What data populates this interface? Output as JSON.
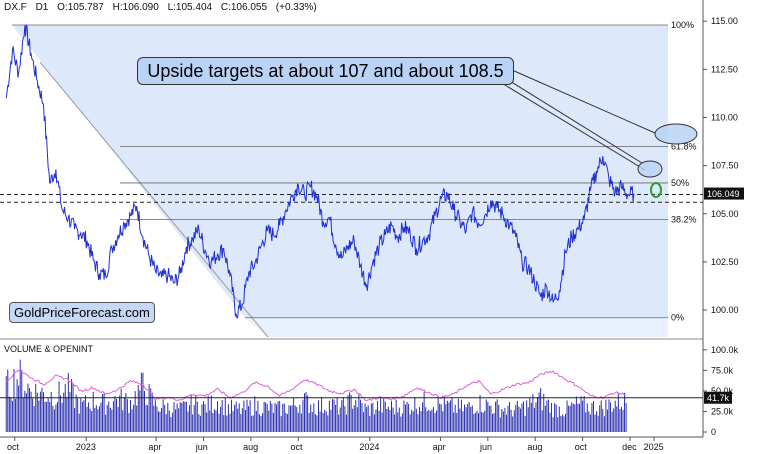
{
  "header": {
    "symbol": "DX.F",
    "interval": "D1",
    "open": "O:105.787",
    "high": "H:106.090",
    "low": "L:105.404",
    "close": "C:106.055",
    "change": "(+0.33%)"
  },
  "annotation": {
    "text": "Upside targets at about 107 and about 108.5"
  },
  "watermark": {
    "text": "GoldPriceForecast.com"
  },
  "volume_panel": {
    "title": "VOLUME & OPENINT"
  },
  "colors": {
    "price_line": "#1f2fd0",
    "fib_fill": "#dde9fb",
    "open_interest": "#e060d8",
    "volume_bars": "#2a2fb0",
    "callout_fill": "#b9d2f5",
    "target_ellipse": "#2ca02c"
  },
  "chart_data": {
    "type": "line",
    "title": "",
    "price_axis": {
      "ticks": [
        "115.00",
        "112.50",
        "110.00",
        "107.50",
        "105.00",
        "102.50",
        "100.00"
      ],
      "tick_values": [
        115,
        112.5,
        110,
        107.5,
        105,
        102.5,
        100
      ],
      "ylim": [
        98.6,
        116.1
      ]
    },
    "time_axis": {
      "ticks": [
        "oct",
        "2023",
        "apr",
        "jun",
        "aug",
        "oct",
        "2024",
        "apr",
        "jun",
        "aug",
        "oct",
        "dec",
        "2025"
      ],
      "tick_dates": [
        "2022-10-01",
        "2023-01-01",
        "2023-04-01",
        "2023-06-01",
        "2023-08-01",
        "2023-10-01",
        "2024-01-01",
        "2024-04-01",
        "2024-06-01",
        "2024-08-01",
        "2024-10-01",
        "2024-12-01",
        "2025-01-01"
      ],
      "xlim": [
        "2022-09-12",
        "2025-03-05"
      ]
    },
    "last_price_label": "106.049",
    "fibonacci_levels": [
      {
        "label": "100%",
        "value": 114.8
      },
      {
        "label": "61.8%",
        "value": 108.5
      },
      {
        "label": "50%",
        "value": 106.6
      },
      {
        "label": "38.2%",
        "value": 104.7
      },
      {
        "label": "0%",
        "value": 99.6
      }
    ],
    "price_series": {
      "name": "",
      "x": [
        "2022-09-20",
        "2022-09-28",
        "2022-10-06",
        "2022-10-14",
        "2022-10-22",
        "2022-10-30",
        "2022-11-07",
        "2022-11-15",
        "2022-11-23",
        "2022-12-01",
        "2022-12-09",
        "2022-12-17",
        "2022-12-25",
        "2023-01-02",
        "2023-01-10",
        "2023-01-18",
        "2023-01-26",
        "2023-02-03",
        "2023-02-11",
        "2023-02-19",
        "2023-02-27",
        "2023-03-07",
        "2023-03-15",
        "2023-03-23",
        "2023-03-31",
        "2023-04-08",
        "2023-04-16",
        "2023-04-24",
        "2023-05-02",
        "2023-05-10",
        "2023-05-18",
        "2023-05-26",
        "2023-06-03",
        "2023-06-11",
        "2023-06-19",
        "2023-06-27",
        "2023-07-05",
        "2023-07-13",
        "2023-07-21",
        "2023-07-29",
        "2023-08-06",
        "2023-08-14",
        "2023-08-22",
        "2023-08-30",
        "2023-09-07",
        "2023-09-15",
        "2023-09-23",
        "2023-10-01",
        "2023-10-09",
        "2023-10-17",
        "2023-10-25",
        "2023-11-02",
        "2023-11-10",
        "2023-11-18",
        "2023-11-26",
        "2023-12-04",
        "2023-12-12",
        "2023-12-20",
        "2023-12-28",
        "2024-01-05",
        "2024-01-13",
        "2024-01-21",
        "2024-01-29",
        "2024-02-06",
        "2024-02-14",
        "2024-02-22",
        "2024-03-01",
        "2024-03-09",
        "2024-03-17",
        "2024-03-25",
        "2024-04-02",
        "2024-04-10",
        "2024-04-18",
        "2024-04-26",
        "2024-05-04",
        "2024-05-12",
        "2024-05-20",
        "2024-05-28",
        "2024-06-05",
        "2024-06-13",
        "2024-06-21",
        "2024-06-29",
        "2024-07-07",
        "2024-07-15",
        "2024-07-23",
        "2024-07-31",
        "2024-08-08",
        "2024-08-16",
        "2024-08-24",
        "2024-09-01",
        "2024-09-09",
        "2024-09-17",
        "2024-09-25",
        "2024-10-03",
        "2024-10-11",
        "2024-10-19",
        "2024-10-27",
        "2024-11-04",
        "2024-11-12",
        "2024-11-20",
        "2024-11-28",
        "2024-12-06"
      ],
      "y": [
        111.0,
        113.5,
        112.3,
        114.8,
        113.3,
        111.9,
        110.7,
        106.6,
        107.3,
        105.2,
        104.8,
        104.2,
        104.0,
        103.6,
        102.6,
        101.9,
        101.8,
        103.2,
        103.9,
        104.5,
        104.9,
        105.4,
        103.8,
        102.8,
        102.0,
        101.7,
        101.8,
        101.4,
        101.9,
        103.3,
        103.7,
        104.2,
        103.1,
        102.5,
        102.9,
        103.2,
        101.8,
        99.8,
        100.3,
        101.9,
        102.4,
        103.3,
        104.1,
        103.9,
        104.4,
        105.2,
        105.9,
        106.5,
        106.0,
        106.4,
        105.9,
        104.6,
        104.8,
        103.4,
        102.7,
        103.3,
        103.6,
        102.3,
        101.3,
        102.5,
        103.3,
        103.9,
        104.4,
        103.8,
        104.3,
        104.0,
        103.2,
        103.6,
        103.9,
        104.9,
        105.8,
        106.0,
        105.2,
        104.6,
        104.1,
        105.1,
        104.5,
        104.9,
        105.7,
        105.3,
        104.9,
        104.4,
        103.8,
        102.5,
        102.2,
        101.5,
        100.7,
        101.2,
        100.4,
        101.0,
        103.0,
        103.8,
        104.2,
        104.7,
        106.2,
        107.2,
        108.0,
        106.8,
        106.1,
        106.4,
        106.0,
        106.05
      ]
    },
    "volume_axis": {
      "ticks": [
        "100.0k",
        "75.0k",
        "50.0k",
        "25.0k",
        "0"
      ],
      "tick_values": [
        100000,
        75000,
        50000,
        25000,
        0
      ],
      "ylim": [
        0,
        112000
      ],
      "last_volume_label": "41.7k"
    },
    "volume_series": {
      "x": [
        "2022-09-20",
        "2022-10-06",
        "2022-10-22",
        "2022-11-07",
        "2022-11-23",
        "2022-12-09",
        "2022-12-25",
        "2023-01-10",
        "2023-01-26",
        "2023-02-11",
        "2023-02-27",
        "2023-03-15",
        "2023-03-31",
        "2023-04-16",
        "2023-05-02",
        "2023-05-18",
        "2023-06-03",
        "2023-06-19",
        "2023-07-05",
        "2023-07-21",
        "2023-08-06",
        "2023-08-22",
        "2023-09-07",
        "2023-09-23",
        "2023-10-09",
        "2023-10-25",
        "2023-11-10",
        "2023-11-26",
        "2023-12-12",
        "2023-12-28",
        "2024-01-13",
        "2024-01-29",
        "2024-02-14",
        "2024-03-01",
        "2024-03-17",
        "2024-04-02",
        "2024-04-18",
        "2024-05-04",
        "2024-05-20",
        "2024-06-05",
        "2024-06-21",
        "2024-07-07",
        "2024-07-23",
        "2024-08-08",
        "2024-08-24",
        "2024-09-09",
        "2024-09-25",
        "2024-10-11",
        "2024-10-27",
        "2024-11-12",
        "2024-11-28"
      ],
      "y": [
        60000,
        75000,
        55000,
        52000,
        48000,
        58000,
        35000,
        42000,
        38000,
        45000,
        40000,
        62000,
        36000,
        33000,
        30000,
        38000,
        34000,
        41000,
        32000,
        30000,
        36000,
        33000,
        31000,
        35000,
        42000,
        34000,
        37000,
        33000,
        45000,
        30000,
        35000,
        33000,
        34000,
        38000,
        41000,
        37000,
        33000,
        32000,
        39000,
        35000,
        31000,
        30000,
        36000,
        45000,
        32000,
        30000,
        37000,
        34000,
        33000,
        40000,
        41700
      ]
    },
    "open_interest_series": {
      "x": [
        "2022-09-20",
        "2022-10-06",
        "2022-10-22",
        "2022-11-07",
        "2022-11-23",
        "2022-12-09",
        "2022-12-25",
        "2023-01-10",
        "2023-01-26",
        "2023-02-11",
        "2023-02-27",
        "2023-03-15",
        "2023-03-31",
        "2023-04-16",
        "2023-05-02",
        "2023-05-18",
        "2023-06-03",
        "2023-06-19",
        "2023-07-05",
        "2023-07-21",
        "2023-08-06",
        "2023-08-22",
        "2023-09-07",
        "2023-09-23",
        "2023-10-09",
        "2023-10-25",
        "2023-11-10",
        "2023-11-26",
        "2023-12-12",
        "2023-12-28",
        "2024-01-13",
        "2024-01-29",
        "2024-02-14",
        "2024-03-01",
        "2024-03-17",
        "2024-04-02",
        "2024-04-18",
        "2024-05-04",
        "2024-05-20",
        "2024-06-05",
        "2024-06-21",
        "2024-07-07",
        "2024-07-23",
        "2024-08-08",
        "2024-08-24",
        "2024-09-09",
        "2024-09-25",
        "2024-10-11",
        "2024-10-27",
        "2024-11-12",
        "2024-11-28"
      ],
      "y": [
        62000,
        76000,
        66000,
        58000,
        68000,
        64000,
        50000,
        54000,
        46000,
        52000,
        62000,
        58000,
        40000,
        42000,
        39000,
        46000,
        44000,
        52000,
        42000,
        48000,
        60000,
        56000,
        44000,
        52000,
        64000,
        58000,
        50000,
        47000,
        52000,
        38000,
        42000,
        40000,
        44000,
        54000,
        48000,
        42000,
        46000,
        56000,
        62000,
        46000,
        52000,
        58000,
        60000,
        70000,
        74000,
        64000,
        56000,
        44000,
        42000,
        48000,
        45000
      ]
    }
  }
}
